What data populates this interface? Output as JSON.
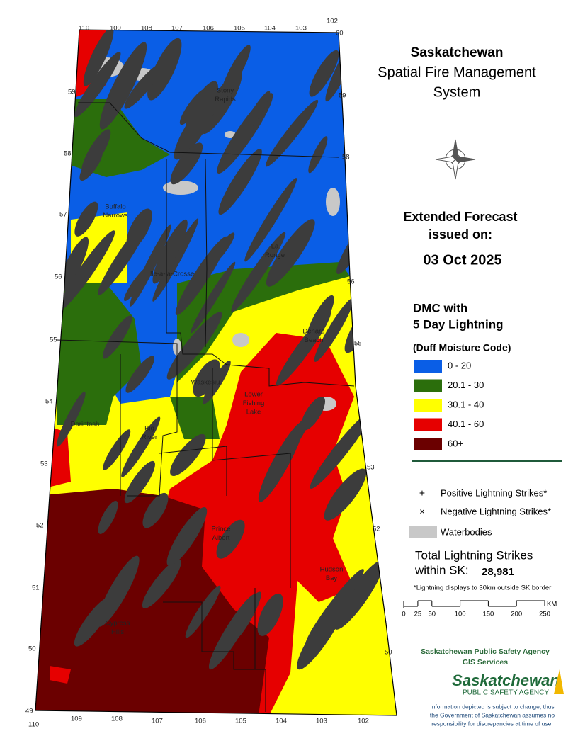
{
  "header": {
    "title": [
      "Saskatchewan",
      "Spatial Fire Management",
      "System"
    ]
  },
  "forecast": {
    "heading": [
      "Extended Forecast",
      "issued on:"
    ],
    "date": "03 Oct 2025"
  },
  "legend": {
    "title": [
      "DMC with",
      "5 Day Lightning"
    ],
    "subtitle": "(Duff Moisture Code)",
    "classes": [
      {
        "label": "0 - 20",
        "color": "#0a5ee6"
      },
      {
        "label": "20.1 - 30",
        "color": "#2b6e0c"
      },
      {
        "label": "30.1 - 40",
        "color": "#ffff00"
      },
      {
        "label": "40.1 - 60",
        "color": "#e60000"
      },
      {
        "label": "60+",
        "color": "#6b0000"
      }
    ],
    "positive": "Positive Lightning Strikes*",
    "negative": "Negative Lightning Strikes*",
    "waterbodies": "Waterbodies",
    "water_color": "#c8c8c8",
    "lightning_color": "#3c3c3c"
  },
  "total": {
    "label": [
      "Total Lightning Strikes",
      "within SK:"
    ],
    "value": "28,981",
    "note": "*Lightning displays to 30km outside SK border"
  },
  "scale": {
    "ticks": [
      0,
      25,
      50,
      100,
      150,
      200,
      250
    ],
    "unit": "KM"
  },
  "agency": {
    "name": "Saskatchewan Public Safety Agency",
    "unit": "GIS  Services",
    "logo": [
      "Saskatchewan",
      "PUBLIC SAFETY AGENCY"
    ],
    "disclaimer": [
      "Information depicted is subject to change, thus",
      "the Government of Saskatchewan assumes no",
      "responsibility for discrepancies at time of use."
    ]
  },
  "map": {
    "places": [
      [
        "Stony",
        "Rapids"
      ],
      [
        "Buffalo",
        "Narrows"
      ],
      [
        "La",
        "Ronge"
      ],
      [
        "Ile-a-la-Crosse"
      ],
      [
        "Denare",
        "Beach"
      ],
      [
        "Waskesiu"
      ],
      [
        "Lower",
        "Fishing",
        "Lake"
      ],
      [
        "Dorintosh"
      ],
      [
        "Big",
        "River"
      ],
      [
        "Prince",
        "Albert"
      ],
      [
        "Hudson",
        "Bay"
      ],
      [
        "Cypress",
        "Hills"
      ]
    ],
    "lon_top": [
      110,
      109,
      108,
      107,
      106,
      105,
      104,
      103,
      102
    ],
    "lon_bottom": [
      110,
      109,
      108,
      107,
      106,
      105,
      104,
      103,
      102
    ],
    "lat_left": [
      59,
      58,
      57,
      56,
      55,
      54,
      53,
      52,
      51,
      50,
      49
    ],
    "lat_right": [
      60,
      59,
      58,
      56,
      55,
      53,
      52,
      50
    ]
  }
}
